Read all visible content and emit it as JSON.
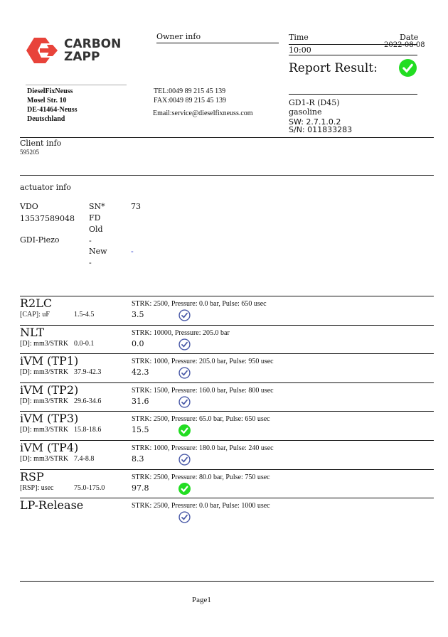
{
  "logo": {
    "line1": "CARBON",
    "line2": "ZAPP",
    "color": "#e8433a"
  },
  "owner": {
    "heading": "Owner info",
    "name": "DieselFixNeuss",
    "street": "Mosel Str. 10",
    "city": "DE-41464-Neuss",
    "country": "Deutschland",
    "tel": "TEL:0049 89 215 45 139",
    "fax": "FAX:0049 89 215 45 139",
    "email": "Email:service@dieselfixneuss.com"
  },
  "report": {
    "time_label": "Time",
    "date_label": "Date",
    "time": "10:00",
    "date": "2022-08-08",
    "result_label": "Report Result:",
    "result_icon": "check-circle-green",
    "device": "GD1-R (D45)",
    "fuel": "gasoline",
    "sw": "SW: 2.7.1.0.2",
    "sn": "S/N: 011833283"
  },
  "client": {
    "heading": "Client info",
    "id": "595205"
  },
  "actuator": {
    "heading": "actuator info",
    "brand": "VDO",
    "number": "13537589048",
    "type": "GDI-Piezo",
    "col2": [
      "SN*",
      "FD",
      "Old",
      "-",
      "New",
      "-"
    ],
    "sn_value": "73",
    "new_value": "-"
  },
  "tests": [
    {
      "name": "R2LC",
      "unit": "[CAP]: uF",
      "range": "1.5-4.5",
      "params": "STRK: 2500, Pressure: 0.0 bar, Pulse: 650 usec",
      "value": "3.5",
      "status": "check-outline-blue"
    },
    {
      "name": "NLT",
      "unit": "[D]: mm3/STRK",
      "range": "0.0-0.1",
      "params": "STRK: 10000, Pressure: 205.0 bar",
      "value": "0.0",
      "status": "check-outline-blue"
    },
    {
      "name": "iVM (TP1)",
      "unit": "[D]: mm3/STRK",
      "range": "37.9-42.3",
      "params": "STRK: 1000, Pressure: 205.0 bar, Pulse: 950 usec",
      "value": "42.3",
      "status": "check-outline-blue"
    },
    {
      "name": "iVM (TP2)",
      "unit": "[D]: mm3/STRK",
      "range": "29.6-34.6",
      "params": "STRK: 1500, Pressure: 160.0 bar, Pulse: 800 usec",
      "value": "31.6",
      "status": "check-outline-blue"
    },
    {
      "name": "iVM (TP3)",
      "unit": "[D]: mm3/STRK",
      "range": "15.8-18.6",
      "params": "STRK: 2500, Pressure: 65.0 bar, Pulse: 650 usec",
      "value": "15.5",
      "status": "check-circle-green"
    },
    {
      "name": "iVM (TP4)",
      "unit": "[D]: mm3/STRK",
      "range": "7.4-8.8",
      "params": "STRK: 1000, Pressure: 180.0 bar, Pulse: 240 usec",
      "value": "8.3",
      "status": "check-outline-blue"
    },
    {
      "name": "RSP",
      "unit": "[RSP]: usec",
      "range": "75.0-175.0",
      "params": "STRK: 2500, Pressure: 80.0 bar, Pulse: 750 usec",
      "value": "97.8",
      "status": "check-circle-green"
    },
    {
      "name": "LP-Release",
      "unit": "",
      "range": "",
      "params": "STRK: 2500, Pressure: 0.0 bar, Pulse: 1000 usec",
      "value": "",
      "status": "check-outline-blue"
    }
  ],
  "footer": {
    "page": "Page1"
  },
  "colors": {
    "ok_green": "#22dd22",
    "check_blue": "#4a5aa8"
  }
}
